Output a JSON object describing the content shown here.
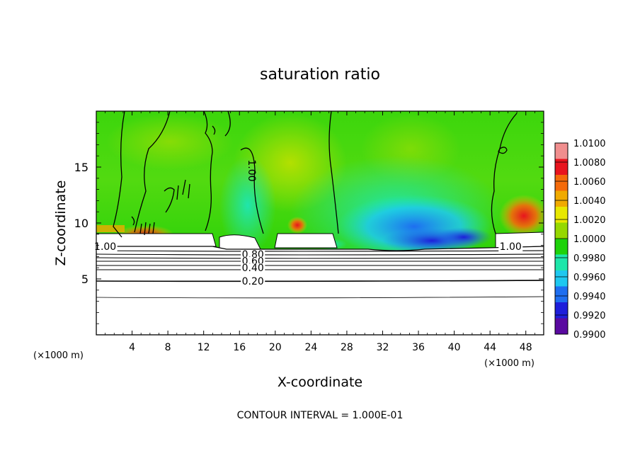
{
  "chart_data": {
    "type": "heatmap",
    "title": "saturation ratio",
    "xlabel": "X-coordinate",
    "ylabel": "Z-coordinate",
    "x_unit_label_left": "(×1000 m)",
    "x_unit_label_right": "(×1000 m)",
    "xlim": [
      0,
      50
    ],
    "ylim": [
      0,
      20
    ],
    "x_ticks": [
      4,
      8,
      12,
      16,
      20,
      24,
      28,
      32,
      36,
      40,
      44,
      48
    ],
    "x_tick_labels": [
      "4",
      "8",
      "12",
      "16",
      "20",
      "24",
      "28",
      "32",
      "36",
      "40",
      "44",
      "48"
    ],
    "y_ticks": [
      5,
      10,
      15
    ],
    "y_tick_labels": [
      "5",
      "10",
      "15"
    ],
    "footer": "CONTOUR INTERVAL = 1.000E-01",
    "colorbar": {
      "min": 0.99,
      "max": 1.01,
      "tick_labels": [
        "1.0100",
        "1.0080",
        "1.0060",
        "1.0040",
        "1.0020",
        "1.0000",
        "0.9980",
        "0.9960",
        "0.9940",
        "0.9920",
        "0.9900"
      ],
      "colors": [
        "#f08e8e",
        "#e8141e",
        "#f46a0a",
        "#f0aa00",
        "#e8e800",
        "#96d800",
        "#1ed20a",
        "#1ee6aa",
        "#1ec8f0",
        "#1e6ef0",
        "#1e1eda",
        "#5a0aa0"
      ]
    },
    "contour_labels": [
      {
        "text": "1.00",
        "x": 1.0,
        "z": 7.9
      },
      {
        "text": "1.00",
        "x": 17.0,
        "z": 15.0
      },
      {
        "text": "1.00",
        "x": 46.3,
        "z": 7.9
      },
      {
        "text": "0.80",
        "x": 17.5,
        "z": 7.2
      },
      {
        "text": "0.60",
        "x": 17.5,
        "z": 6.6
      },
      {
        "text": "0.40",
        "x": 17.5,
        "z": 6.0
      },
      {
        "text": "0.20",
        "x": 17.5,
        "z": 4.8
      }
    ]
  }
}
